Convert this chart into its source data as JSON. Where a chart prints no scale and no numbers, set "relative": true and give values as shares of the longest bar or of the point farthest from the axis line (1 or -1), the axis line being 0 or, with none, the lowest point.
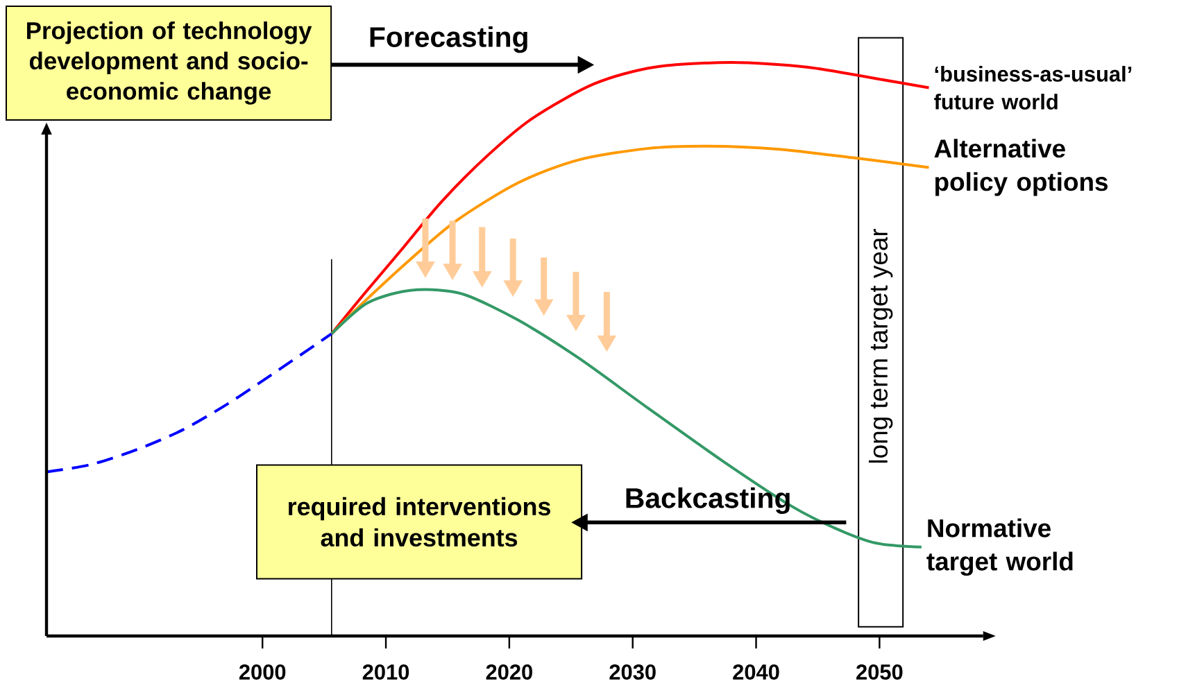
{
  "chart_data": {
    "type": "line",
    "relative": true,
    "xlim": [
      1982.5,
      2058.4
    ],
    "xticks": [
      2000,
      2010,
      2020,
      2030,
      2040,
      2050
    ],
    "series": [
      {
        "color": "#0000ff",
        "line_style": "dashed",
        "x": [
          1982.5,
          1986.1,
          1989.8,
          1993.5,
          1997.2,
          2000.9,
          2005.6
        ],
        "values": [
          0.286,
          0.299,
          0.325,
          0.359,
          0.405,
          0.458,
          0.527
        ]
      },
      {
        "name": "‘business-as-usual’ future world",
        "color": "#ff0000",
        "x": [
          2005.6,
          2008.3,
          2011.4,
          2014.5,
          2018.2,
          2021.9,
          2026.9,
          2031.8,
          2038.0,
          2044.1,
          2049.7,
          2054.0
        ],
        "values": [
          0.527,
          0.598,
          0.677,
          0.757,
          0.837,
          0.903,
          0.963,
          0.992,
          1,
          0.992,
          0.972,
          0.956
        ]
      },
      {
        "name": "Alternative policy options",
        "color": "#ff9900",
        "x": [
          2005.6,
          2008.3,
          2012.0,
          2015.7,
          2020.7,
          2025.6,
          2031.2,
          2036.1,
          2041.7,
          2047.8,
          2054.0
        ],
        "values": [
          0.527,
          0.584,
          0.657,
          0.724,
          0.79,
          0.83,
          0.85,
          0.854,
          0.849,
          0.834,
          0.817
        ]
      },
      {
        "name": "Normative target world",
        "color": "#339966",
        "x": [
          2005.6,
          2008.3,
          2010.8,
          2013.3,
          2016.4,
          2020.7,
          2025.6,
          2031.2,
          2037.3,
          2042.9,
          2046.6,
          2049.7,
          2053.4
        ],
        "values": [
          0.527,
          0.578,
          0.598,
          0.604,
          0.595,
          0.551,
          0.485,
          0.398,
          0.305,
          0.226,
          0.186,
          0.162,
          0.155
        ]
      }
    ],
    "bands": [
      {
        "axis": "x",
        "from": 2048.3,
        "to": 2051.9,
        "label": "long term target year",
        "color": "#ffffff"
      }
    ],
    "ref_lines": [
      {
        "axis": "x",
        "value": 2005.6
      }
    ],
    "annotations": [
      "Projection of technology development and socio-economic change",
      "Forecasting",
      "Backcasting",
      "required interventions and investments"
    ]
  }
}
